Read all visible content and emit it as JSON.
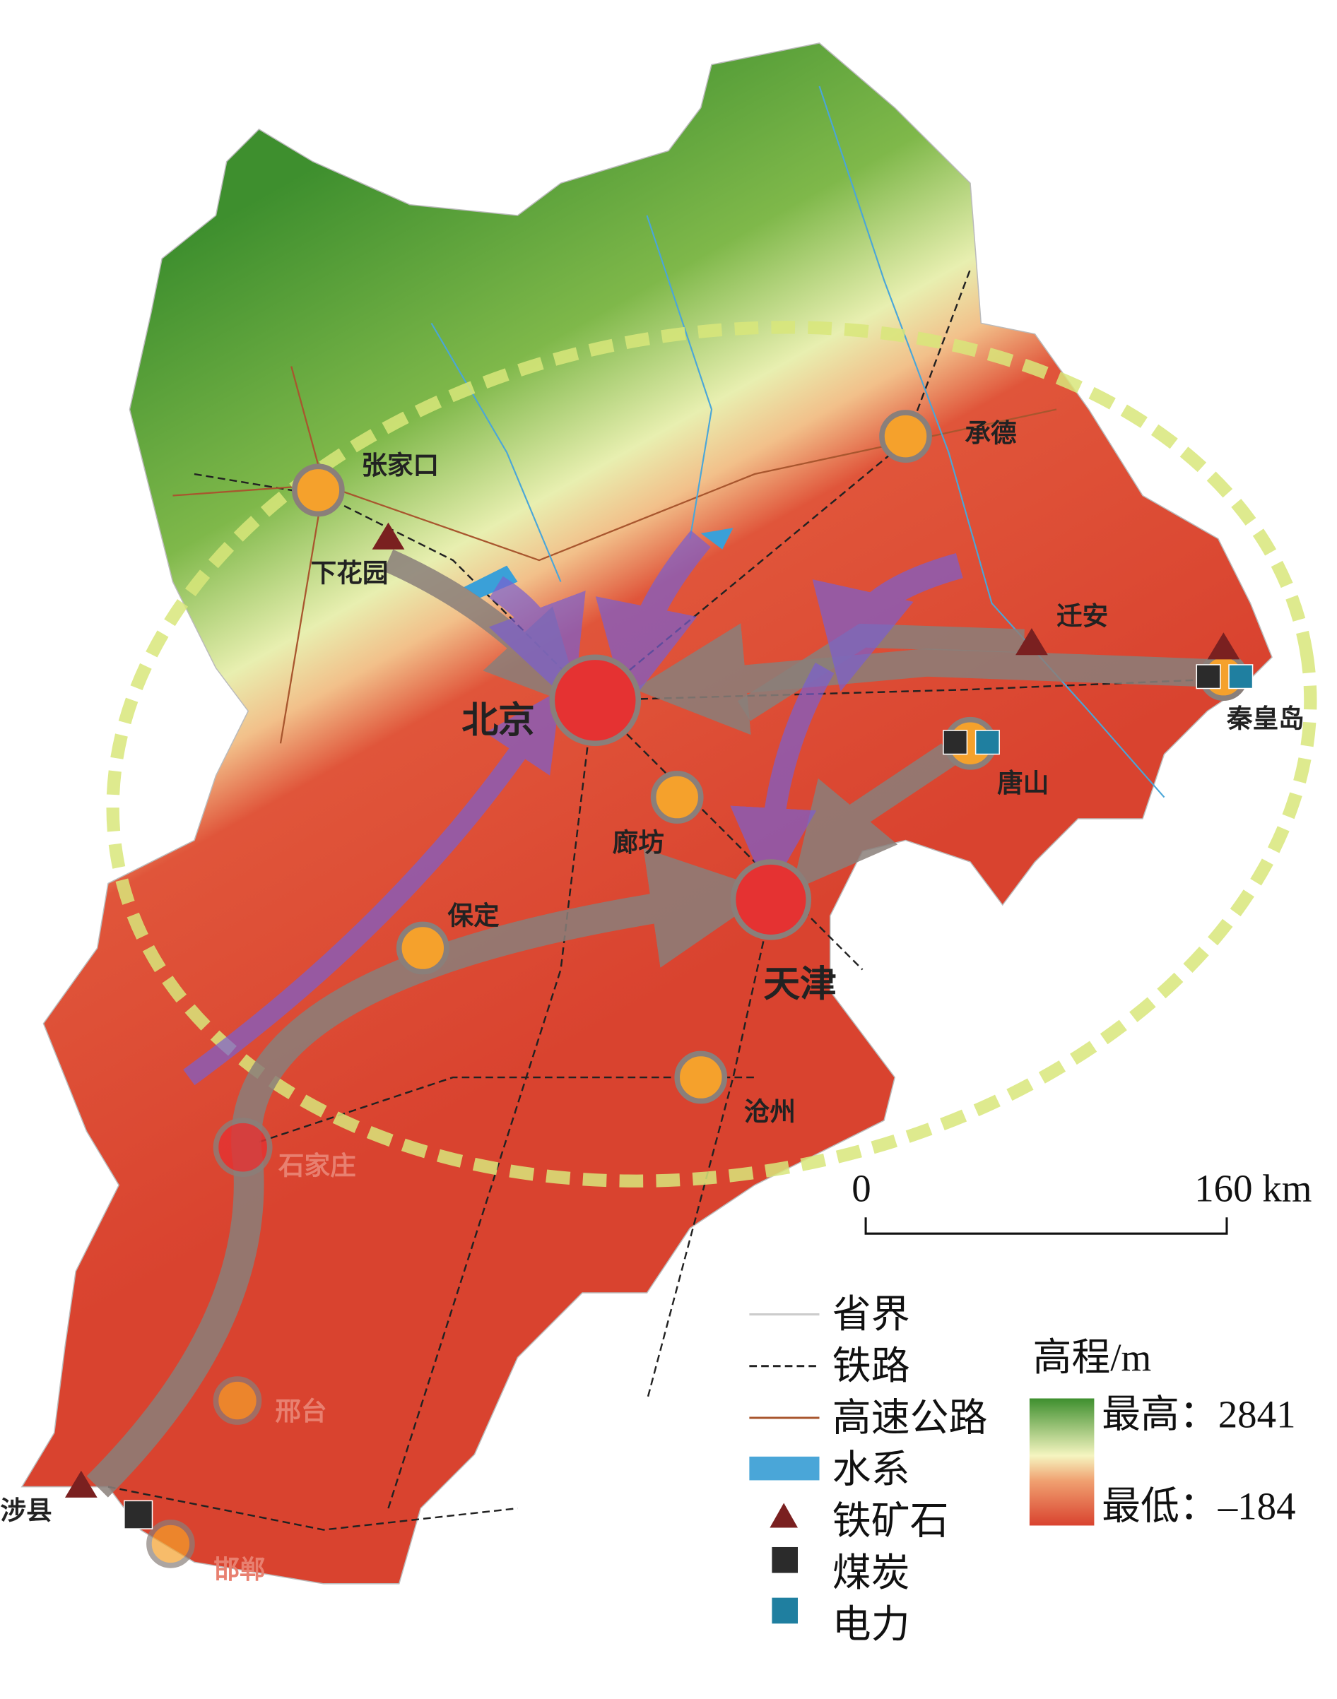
{
  "map": {
    "cities": [
      {
        "name": "张家口"
      },
      {
        "name": "下花园"
      },
      {
        "name": "承德"
      },
      {
        "name": "北京"
      },
      {
        "name": "迁安"
      },
      {
        "name": "秦皇岛"
      },
      {
        "name": "唐山"
      },
      {
        "name": "廊坊"
      },
      {
        "name": "天津"
      },
      {
        "name": "保定"
      },
      {
        "name": "沧州"
      },
      {
        "name": "石家庄"
      },
      {
        "name": "邢台"
      },
      {
        "name": "涉县"
      },
      {
        "name": "邯郸"
      }
    ],
    "scale_bar": {
      "start": "0",
      "end": "160 km"
    },
    "legend": {
      "items": [
        "省界",
        "铁路",
        "高速公路",
        "水系",
        "铁矿石",
        "煤炭",
        "电力"
      ],
      "elevation": {
        "title": "高程/m",
        "max": "最高：2841",
        "min": "最低：–184"
      }
    }
  }
}
